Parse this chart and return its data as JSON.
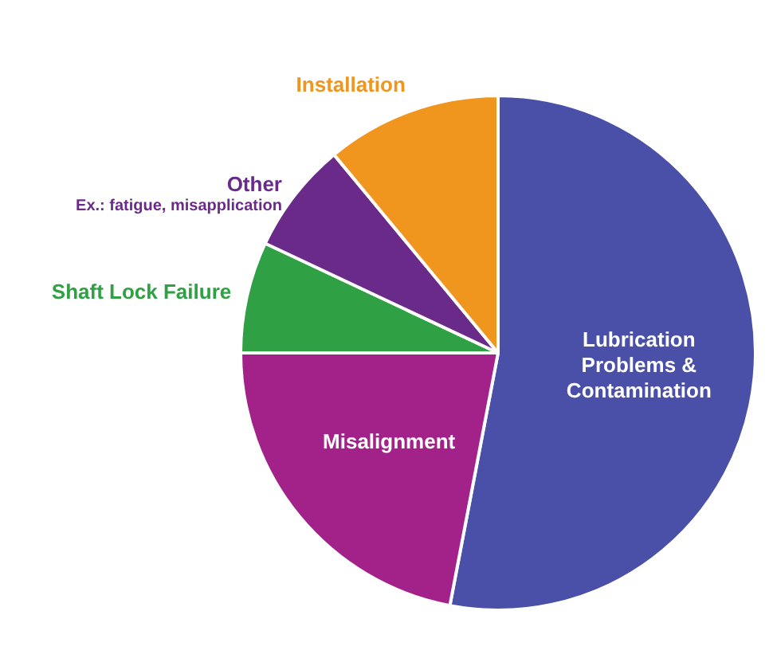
{
  "chart_data": {
    "type": "pie",
    "categories": [
      "Lubrication Problems & Contamination",
      "Misalignment",
      "Shaft Lock Failure",
      "Other",
      "Installation"
    ],
    "values": [
      53,
      22,
      7,
      7,
      11
    ],
    "colors": [
      "#4a50a8",
      "#a3228a",
      "#2fa043",
      "#6a2a8a",
      "#f0961e"
    ],
    "annotations": [
      "Ex.: fatigue, misapplication"
    ],
    "legend": false
  }
}
